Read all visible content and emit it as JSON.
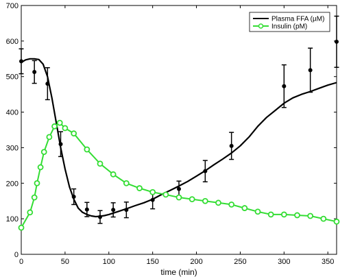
{
  "chart_data": {
    "type": "line",
    "title": "",
    "xlabel": "time (min)",
    "ylabel": "",
    "xlim": [
      0,
      360
    ],
    "ylim": [
      0,
      700
    ],
    "xticks": [
      0,
      50,
      100,
      150,
      200,
      250,
      300,
      350
    ],
    "yticks": [
      0,
      100,
      200,
      300,
      400,
      500,
      600,
      700
    ],
    "grid": false,
    "legend_position": "top-right",
    "series": [
      {
        "name": "Plasma FFA (µM)",
        "color": "#000000",
        "style": "line",
        "x": [
          0,
          5,
          10,
          15,
          20,
          25,
          30,
          35,
          40,
          45,
          50,
          55,
          60,
          65,
          70,
          75,
          80,
          85,
          90,
          95,
          100,
          110,
          120,
          130,
          140,
          150,
          160,
          170,
          180,
          190,
          200,
          210,
          220,
          230,
          240,
          250,
          260,
          270,
          280,
          290,
          300,
          310,
          320,
          330,
          340,
          350,
          360
        ],
        "y": [
          540,
          547,
          550,
          550,
          548,
          535,
          500,
          440,
          370,
          300,
          240,
          190,
          155,
          130,
          118,
          112,
          108,
          106,
          107,
          109,
          112,
          120,
          128,
          137,
          145,
          155,
          168,
          180,
          192,
          205,
          220,
          235,
          252,
          268,
          285,
          305,
          330,
          360,
          385,
          405,
          425,
          440,
          450,
          458,
          467,
          476,
          483
        ]
      },
      {
        "name": "",
        "color": "#000000",
        "style": "errorbar",
        "x": [
          0,
          15,
          30,
          45,
          60,
          75,
          90,
          105,
          120,
          150,
          180,
          210,
          240,
          300,
          330,
          360
        ],
        "y": [
          543,
          513,
          480,
          310,
          162,
          126,
          105,
          125,
          125,
          153,
          184,
          234,
          305,
          473,
          518,
          598
        ],
        "err": [
          35,
          32,
          45,
          35,
          22,
          20,
          18,
          20,
          22,
          25,
          22,
          30,
          38,
          60,
          62,
          72
        ]
      },
      {
        "name": "Insulin (pM)",
        "color": "#33dd33",
        "style": "line-marker",
        "x": [
          0,
          10,
          15,
          18,
          22,
          26,
          32,
          38,
          44,
          50,
          60,
          75,
          90,
          105,
          120,
          135,
          150,
          165,
          180,
          195,
          210,
          225,
          240,
          255,
          270,
          285,
          300,
          315,
          330,
          345,
          360
        ],
        "y": [
          75,
          118,
          160,
          200,
          245,
          288,
          330,
          360,
          370,
          355,
          340,
          295,
          255,
          225,
          200,
          186,
          175,
          168,
          160,
          155,
          150,
          145,
          140,
          130,
          120,
          112,
          112,
          110,
          108,
          100,
          92
        ]
      }
    ]
  }
}
